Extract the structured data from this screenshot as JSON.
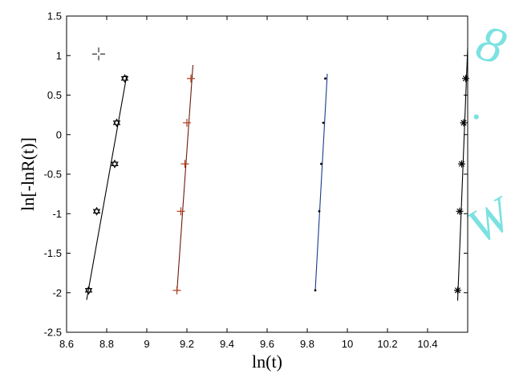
{
  "chart_data": {
    "type": "scatter",
    "xlabel": "ln(t)",
    "ylabel": "ln[-lnR(t)]",
    "xlim": [
      8.6,
      10.6
    ],
    "ylim": [
      -2.5,
      1.5
    ],
    "xticks": [
      "8.6",
      "8.8",
      "9",
      "9.2",
      "9.4",
      "9.6",
      "9.8",
      "10",
      "10.2",
      "10.4"
    ],
    "yticks": [
      "1.5",
      "1",
      "0.5",
      "0",
      "-0.5",
      "-1",
      "-1.5",
      "-2",
      "-2.5"
    ],
    "grid": false,
    "series": [
      {
        "marker": "star6",
        "line_color": "#000000",
        "points": [
          [
            8.71,
            -1.97
          ],
          [
            8.75,
            -0.97
          ],
          [
            8.84,
            -0.37
          ],
          [
            8.85,
            0.15
          ],
          [
            8.89,
            0.71
          ]
        ],
        "fit": [
          [
            8.7,
            -2.09
          ],
          [
            8.9,
            0.75
          ]
        ]
      },
      {
        "marker": "plus",
        "line_color": "#6b1a0a",
        "points": [
          [
            9.15,
            -1.97
          ],
          [
            9.17,
            -0.97
          ],
          [
            9.19,
            -0.37
          ],
          [
            9.2,
            0.15
          ],
          [
            9.22,
            0.71
          ]
        ],
        "fit": [
          [
            9.15,
            -2.0
          ],
          [
            9.23,
            0.88
          ]
        ]
      },
      {
        "marker": "dot",
        "line_color": "#1a3a8a",
        "points": [
          [
            9.84,
            -1.97
          ],
          [
            9.86,
            -0.97
          ],
          [
            9.87,
            -0.37
          ],
          [
            9.88,
            0.15
          ],
          [
            9.89,
            0.71
          ]
        ],
        "fit": [
          [
            9.84,
            -1.97
          ],
          [
            9.9,
            0.77
          ]
        ]
      },
      {
        "marker": "asterisk",
        "line_color": "#000000",
        "points": [
          [
            10.55,
            -1.97
          ],
          [
            10.56,
            -0.97
          ],
          [
            10.57,
            -0.37
          ],
          [
            10.58,
            0.15
          ],
          [
            10.59,
            0.71
          ]
        ],
        "fit": [
          [
            10.55,
            -2.1
          ],
          [
            10.6,
            1.1
          ]
        ]
      }
    ],
    "annotations": [
      {
        "type": "crosshair",
        "x": 8.76,
        "y": 1.02
      }
    ]
  }
}
